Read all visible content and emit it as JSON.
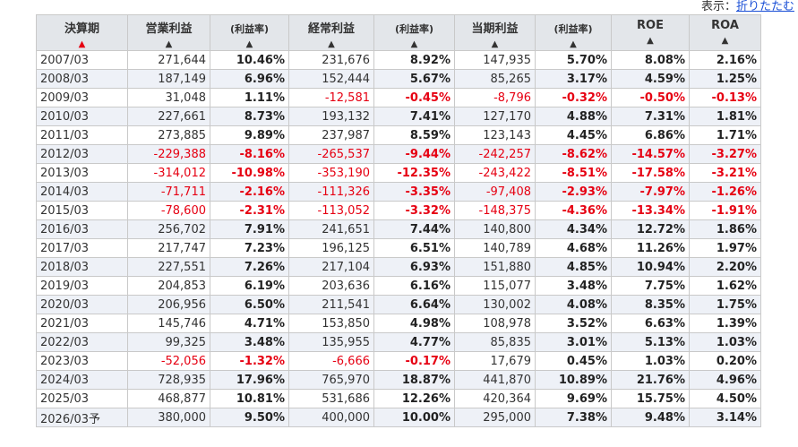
{
  "display_toggle": {
    "label": "表示：",
    "link": "折りたたむ"
  },
  "headers": [
    {
      "label": "決算期",
      "arrow": "▲",
      "active": true,
      "small": false
    },
    {
      "label": "営業利益",
      "arrow": "▲",
      "active": false,
      "small": false
    },
    {
      "label": "(利益率)",
      "arrow": "▲",
      "active": false,
      "small": true
    },
    {
      "label": "経常利益",
      "arrow": "▲",
      "active": false,
      "small": false
    },
    {
      "label": "(利益率)",
      "arrow": "▲",
      "active": false,
      "small": true
    },
    {
      "label": "当期利益",
      "arrow": "▲",
      "active": false,
      "small": false
    },
    {
      "label": "(利益率)",
      "arrow": "▲",
      "active": false,
      "small": true
    },
    {
      "label": "ROE",
      "arrow": "▲",
      "active": false,
      "small": false
    },
    {
      "label": "ROA",
      "arrow": "▲",
      "active": false,
      "small": false
    }
  ],
  "rows": [
    [
      "2007/03",
      "271,644",
      "10.46%",
      "231,676",
      "8.92%",
      "147,935",
      "5.70%",
      "8.08%",
      "2.16%"
    ],
    [
      "2008/03",
      "187,149",
      "6.96%",
      "152,444",
      "5.67%",
      "85,265",
      "3.17%",
      "4.59%",
      "1.25%"
    ],
    [
      "2009/03",
      "31,048",
      "1.11%",
      "-12,581",
      "-0.45%",
      "-8,796",
      "-0.32%",
      "-0.50%",
      "-0.13%"
    ],
    [
      "2010/03",
      "227,661",
      "8.73%",
      "193,132",
      "7.41%",
      "127,170",
      "4.88%",
      "7.31%",
      "1.81%"
    ],
    [
      "2011/03",
      "273,885",
      "9.89%",
      "237,987",
      "8.59%",
      "123,143",
      "4.45%",
      "6.86%",
      "1.71%"
    ],
    [
      "2012/03",
      "-229,388",
      "-8.16%",
      "-265,537",
      "-9.44%",
      "-242,257",
      "-8.62%",
      "-14.57%",
      "-3.27%"
    ],
    [
      "2013/03",
      "-314,012",
      "-10.98%",
      "-353,190",
      "-12.35%",
      "-243,422",
      "-8.51%",
      "-17.58%",
      "-3.21%"
    ],
    [
      "2014/03",
      "-71,711",
      "-2.16%",
      "-111,326",
      "-3.35%",
      "-97,408",
      "-2.93%",
      "-7.97%",
      "-1.26%"
    ],
    [
      "2015/03",
      "-78,600",
      "-2.31%",
      "-113,052",
      "-3.32%",
      "-148,375",
      "-4.36%",
      "-13.34%",
      "-1.91%"
    ],
    [
      "2016/03",
      "256,702",
      "7.91%",
      "241,651",
      "7.44%",
      "140,800",
      "4.34%",
      "12.72%",
      "1.86%"
    ],
    [
      "2017/03",
      "217,747",
      "7.23%",
      "196,125",
      "6.51%",
      "140,789",
      "4.68%",
      "11.26%",
      "1.97%"
    ],
    [
      "2018/03",
      "227,551",
      "7.26%",
      "217,104",
      "6.93%",
      "151,880",
      "4.85%",
      "10.94%",
      "2.20%"
    ],
    [
      "2019/03",
      "204,853",
      "6.19%",
      "203,636",
      "6.16%",
      "115,077",
      "3.48%",
      "7.75%",
      "1.62%"
    ],
    [
      "2020/03",
      "206,956",
      "6.50%",
      "211,541",
      "6.64%",
      "130,002",
      "4.08%",
      "8.35%",
      "1.75%"
    ],
    [
      "2021/03",
      "145,746",
      "4.71%",
      "153,850",
      "4.98%",
      "108,978",
      "3.52%",
      "6.63%",
      "1.39%"
    ],
    [
      "2022/03",
      "99,325",
      "3.48%",
      "135,955",
      "4.77%",
      "85,835",
      "3.01%",
      "5.13%",
      "1.03%"
    ],
    [
      "2023/03",
      "-52,056",
      "-1.32%",
      "-6,666",
      "-0.17%",
      "17,679",
      "0.45%",
      "1.03%",
      "0.20%"
    ],
    [
      "2024/03",
      "728,935",
      "17.96%",
      "765,970",
      "18.87%",
      "441,870",
      "10.89%",
      "21.76%",
      "4.96%"
    ],
    [
      "2025/03",
      "468,877",
      "10.81%",
      "531,686",
      "12.26%",
      "420,364",
      "9.69%",
      "15.75%",
      "4.50%"
    ],
    [
      "2026/03予",
      "380,000",
      "9.50%",
      "400,000",
      "10.00%",
      "295,000",
      "7.38%",
      "9.48%",
      "3.14%"
    ]
  ],
  "colors": {
    "negative": "#e60012",
    "header_bg": "#e3e6ea",
    "alt_row_bg": "#eef1f7",
    "link": "#1a4fd6"
  }
}
